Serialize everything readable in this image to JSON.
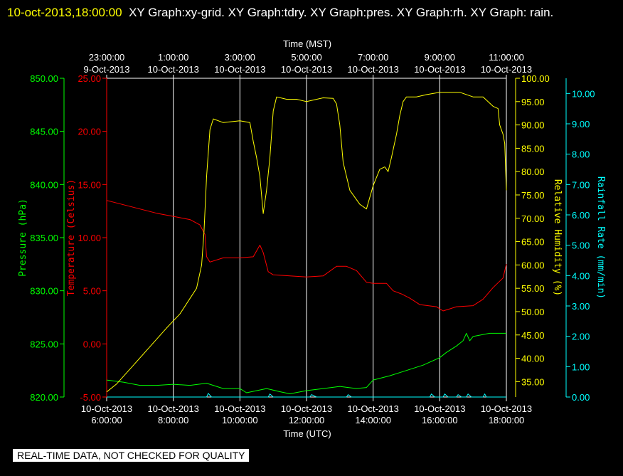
{
  "header": {
    "timestamp": "10-oct-2013,18:00:00",
    "titles": "XY Graph:xy-grid.  XY Graph:tdry.  XY Graph:pres.  XY Graph:rh.  XY Graph: rain."
  },
  "footer": {
    "text": "REAL-TIME DATA, NOT CHECKED FOR QUALITY"
  },
  "colors": {
    "temperature": "#ff0000",
    "pressure": "#00ff00",
    "humidity": "#ffff00",
    "rain": "#00ffff",
    "grid": "#ffffff"
  },
  "chart_data": {
    "type": "line",
    "x_bottom_label": "Time (UTC)",
    "x_top_label": "Time (MST)",
    "x_range_hours_utc": [
      6,
      18
    ],
    "bottom_ticks": [
      {
        "h": 6,
        "date": "10-Oct-2013",
        "time": "6:00:00"
      },
      {
        "h": 8,
        "date": "10-Oct-2013",
        "time": "8:00:00"
      },
      {
        "h": 10,
        "date": "10-Oct-2013",
        "time": "10:00:00"
      },
      {
        "h": 12,
        "date": "10-Oct-2013",
        "time": "12:00:00"
      },
      {
        "h": 14,
        "date": "10-Oct-2013",
        "time": "14:00:00"
      },
      {
        "h": 16,
        "date": "10-Oct-2013",
        "time": "16:00:00"
      },
      {
        "h": 18,
        "date": "10-Oct-2013",
        "time": "18:00:00"
      }
    ],
    "top_ticks": [
      {
        "h": 6,
        "time": "23:00:00",
        "date": "9-Oct-2013"
      },
      {
        "h": 8,
        "time": "1:00:00",
        "date": "10-Oct-2013"
      },
      {
        "h": 10,
        "time": "3:00:00",
        "date": "10-Oct-2013"
      },
      {
        "h": 12,
        "time": "5:00:00",
        "date": "10-Oct-2013"
      },
      {
        "h": 14,
        "time": "7:00:00",
        "date": "10-Oct-2013"
      },
      {
        "h": 16,
        "time": "9:00:00",
        "date": "10-Oct-2013"
      },
      {
        "h": 18,
        "time": "11:00:00",
        "date": "10-Oct-2013"
      }
    ],
    "axes": {
      "pressure": {
        "label": "Pressure (hPa)",
        "ylim": [
          820,
          850
        ],
        "ticks": [
          "820.00",
          "825.00",
          "830.00",
          "835.00",
          "840.00",
          "845.00",
          "850.00"
        ]
      },
      "temperature": {
        "label": "Temperature (Celsius)",
        "ylim": [
          -5,
          25
        ],
        "ticks": [
          "-5.00",
          "0.00",
          "5.00",
          "10.00",
          "15.00",
          "20.00",
          "25.00"
        ]
      },
      "humidity": {
        "label": "Relative Humidity (%)",
        "ylim": [
          31.7,
          100
        ],
        "ticks": [
          "35.00",
          "40.00",
          "45.00",
          "50.00",
          "55.00",
          "60.00",
          "65.00",
          "70.00",
          "75.00",
          "80.00",
          "85.00",
          "90.00",
          "95.00",
          "100.00"
        ]
      },
      "rain": {
        "label": "Rainfall Rate (mm/min)",
        "ylim": [
          0,
          10.5
        ],
        "ticks": [
          "0.00",
          "1.00",
          "2.00",
          "3.00",
          "4.00",
          "5.00",
          "6.00",
          "7.00",
          "8.00",
          "9.00",
          "10.00"
        ]
      }
    },
    "series": [
      {
        "key": "temperature",
        "values": [
          [
            6,
            13.5
          ],
          [
            6.5,
            13.1
          ],
          [
            7,
            12.7
          ],
          [
            7.5,
            12.3
          ],
          [
            8,
            12
          ],
          [
            8.5,
            11.7
          ],
          [
            8.8,
            11.2
          ],
          [
            8.95,
            10.3
          ],
          [
            9,
            8.2
          ],
          [
            9.1,
            7.7
          ],
          [
            9.5,
            8.1
          ],
          [
            10,
            8.1
          ],
          [
            10.4,
            8.2
          ],
          [
            10.6,
            9.3
          ],
          [
            10.7,
            8.6
          ],
          [
            10.85,
            6.8
          ],
          [
            11,
            6.5
          ],
          [
            12,
            6.3
          ],
          [
            12.5,
            6.4
          ],
          [
            12.9,
            7.3
          ],
          [
            13.2,
            7.3
          ],
          [
            13.5,
            6.9
          ],
          [
            13.8,
            5.8
          ],
          [
            14,
            5.7
          ],
          [
            14.4,
            5.7
          ],
          [
            14.6,
            5
          ],
          [
            14.85,
            4.7
          ],
          [
            15.1,
            4.3
          ],
          [
            15.4,
            3.7
          ],
          [
            15.9,
            3.5
          ],
          [
            16.1,
            3.1
          ],
          [
            16.3,
            3.3
          ],
          [
            16.5,
            3.5
          ],
          [
            17,
            3.6
          ],
          [
            17.3,
            4.2
          ],
          [
            17.6,
            5.3
          ],
          [
            17.9,
            6.2
          ],
          [
            18,
            7.5
          ]
        ]
      },
      {
        "key": "pressure",
        "values": [
          [
            6,
            821.6
          ],
          [
            6.5,
            821.4
          ],
          [
            7,
            821.1
          ],
          [
            7.5,
            821.1
          ],
          [
            8,
            821.2
          ],
          [
            8.5,
            821.1
          ],
          [
            9,
            821.3
          ],
          [
            9.5,
            820.8
          ],
          [
            10,
            820.8
          ],
          [
            10.2,
            820.4
          ],
          [
            10.8,
            820.8
          ],
          [
            11.2,
            820.5
          ],
          [
            11.5,
            820.3
          ],
          [
            12,
            820.6
          ],
          [
            12.5,
            820.8
          ],
          [
            13,
            821
          ],
          [
            13.5,
            820.8
          ],
          [
            13.8,
            820.9
          ],
          [
            14,
            821.6
          ],
          [
            14.5,
            822
          ],
          [
            15,
            822.5
          ],
          [
            15.5,
            823
          ],
          [
            16,
            823.7
          ],
          [
            16.2,
            824.2
          ],
          [
            16.5,
            824.8
          ],
          [
            16.7,
            825.3
          ],
          [
            16.8,
            826
          ],
          [
            16.9,
            825.3
          ],
          [
            17,
            825.7
          ],
          [
            17.5,
            826
          ],
          [
            18,
            826
          ]
        ]
      },
      {
        "key": "humidity",
        "values": [
          [
            6,
            32.8
          ],
          [
            6.3,
            34.5
          ],
          [
            6.8,
            38.5
          ],
          [
            7.3,
            42.5
          ],
          [
            7.8,
            46.5
          ],
          [
            8.2,
            49.5
          ],
          [
            8.7,
            55
          ],
          [
            8.85,
            60
          ],
          [
            8.92,
            67
          ],
          [
            9,
            79
          ],
          [
            9.1,
            89
          ],
          [
            9.2,
            91.3
          ],
          [
            9.5,
            90.5
          ],
          [
            10,
            90.9
          ],
          [
            10.3,
            90.5
          ],
          [
            10.4,
            86.5
          ],
          [
            10.5,
            83
          ],
          [
            10.6,
            79
          ],
          [
            10.7,
            71
          ],
          [
            10.8,
            76
          ],
          [
            10.9,
            83
          ],
          [
            11,
            93
          ],
          [
            11.1,
            96
          ],
          [
            11.4,
            95.5
          ],
          [
            11.7,
            95.5
          ],
          [
            12,
            95
          ],
          [
            12.5,
            95.8
          ],
          [
            12.8,
            95.7
          ],
          [
            12.9,
            94.5
          ],
          [
            13,
            90
          ],
          [
            13.1,
            82
          ],
          [
            13.3,
            76
          ],
          [
            13.6,
            73
          ],
          [
            13.8,
            72
          ],
          [
            14,
            77
          ],
          [
            14.2,
            80.5
          ],
          [
            14.35,
            81
          ],
          [
            14.45,
            80
          ],
          [
            14.55,
            83
          ],
          [
            14.7,
            88
          ],
          [
            14.8,
            92
          ],
          [
            14.9,
            95
          ],
          [
            15,
            96
          ],
          [
            15.3,
            96
          ],
          [
            15.6,
            96.5
          ],
          [
            16,
            97
          ],
          [
            16.3,
            97
          ],
          [
            16.6,
            97
          ],
          [
            17,
            96
          ],
          [
            17.3,
            96
          ],
          [
            17.6,
            94
          ],
          [
            17.75,
            93.5
          ],
          [
            17.8,
            90
          ],
          [
            17.9,
            88
          ],
          [
            17.95,
            86
          ],
          [
            18,
            76
          ]
        ]
      },
      {
        "key": "rain",
        "values": [
          [
            6,
            0
          ],
          [
            9,
            0
          ],
          [
            9.05,
            0.12
          ],
          [
            9.15,
            0
          ],
          [
            10.85,
            0
          ],
          [
            10.9,
            0.1
          ],
          [
            11,
            0
          ],
          [
            12.1,
            0
          ],
          [
            12.15,
            0.08
          ],
          [
            12.3,
            0
          ],
          [
            13.2,
            0
          ],
          [
            13.25,
            0.08
          ],
          [
            13.35,
            0
          ],
          [
            15.7,
            0
          ],
          [
            15.75,
            0.1
          ],
          [
            15.85,
            0
          ],
          [
            16.1,
            0
          ],
          [
            16.15,
            0.1
          ],
          [
            16.25,
            0
          ],
          [
            16.5,
            0
          ],
          [
            16.55,
            0.08
          ],
          [
            16.65,
            0
          ],
          [
            16.8,
            0
          ],
          [
            16.85,
            0.1
          ],
          [
            16.95,
            0
          ],
          [
            17.3,
            0
          ],
          [
            17.35,
            0.1
          ],
          [
            17.4,
            0
          ],
          [
            18,
            0
          ]
        ]
      }
    ]
  }
}
